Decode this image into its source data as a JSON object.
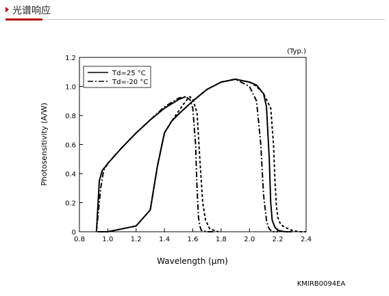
{
  "header": {
    "title": "光谱响应"
  },
  "colors": {
    "accent": "#b00000",
    "rule": "#c9c9c9",
    "ink": "#000000"
  },
  "chart_data": {
    "type": "line",
    "title": "",
    "note": "(Typ.)",
    "xlabel": "Wavelength (µm)",
    "ylabel": "Photosensitivity (A/W)",
    "xlim": [
      0.8,
      2.4
    ],
    "ylim": [
      0,
      1.2
    ],
    "x_ticks": [
      "0.8",
      "1.0",
      "1.2",
      "1.4",
      "1.6",
      "1.8",
      "2.0",
      "2.2",
      "2.4"
    ],
    "y_ticks": [
      "0",
      "0.2",
      "0.4",
      "0.6",
      "0.8",
      "1.0",
      "1.2"
    ],
    "grid": false,
    "legend": "top-left",
    "code": "KMIRB0094EA",
    "series": [
      {
        "name": "Td=25 °C",
        "line": "solid",
        "x": [
          0.92,
          0.94,
          0.96,
          1.0,
          1.1,
          1.2,
          1.3,
          1.4,
          1.5,
          1.55
        ],
        "y": [
          0.0,
          0.35,
          0.42,
          0.47,
          0.58,
          0.68,
          0.77,
          0.85,
          0.91,
          0.93
        ]
      },
      {
        "name": "Td=25 °C",
        "line": "solid",
        "x": [
          0.93,
          1.0,
          1.1,
          1.2,
          1.3,
          1.35,
          1.4,
          1.45,
          1.5,
          1.6,
          1.7,
          1.8,
          1.9,
          2.0,
          2.05,
          2.1,
          2.12,
          2.14,
          2.15,
          2.16,
          2.18,
          2.2,
          2.25,
          2.3
        ],
        "y": [
          0.0,
          0.0,
          0.02,
          0.04,
          0.15,
          0.45,
          0.68,
          0.76,
          0.81,
          0.9,
          0.98,
          1.03,
          1.05,
          1.03,
          1.01,
          0.95,
          0.86,
          0.5,
          0.2,
          0.08,
          0.03,
          0.01,
          0.0,
          0.0
        ]
      },
      {
        "name": "Td=-20 °C",
        "line": "dash-dot",
        "x": [
          0.92,
          0.95,
          0.97,
          1.0,
          1.1,
          1.2,
          1.3,
          1.4,
          1.5,
          1.55,
          1.58,
          1.6,
          1.62,
          1.63,
          1.64,
          1.65,
          1.66,
          1.7,
          1.75
        ],
        "y": [
          0.0,
          0.3,
          0.42,
          0.47,
          0.58,
          0.68,
          0.77,
          0.86,
          0.92,
          0.93,
          0.91,
          0.85,
          0.6,
          0.3,
          0.1,
          0.04,
          0.01,
          0.0,
          0.0
        ]
      },
      {
        "name": "Td=-20 °C",
        "line": "dash-dot",
        "x": [
          1.3,
          1.35,
          1.4,
          1.45,
          1.5,
          1.6,
          1.7,
          1.8,
          1.9,
          2.0,
          2.05,
          2.08,
          2.1,
          2.12,
          2.13,
          2.14,
          2.16,
          2.2
        ],
        "y": [
          0.15,
          0.45,
          0.68,
          0.76,
          0.81,
          0.9,
          0.98,
          1.03,
          1.05,
          1.0,
          0.9,
          0.6,
          0.25,
          0.08,
          0.04,
          0.02,
          0.0,
          0.0
        ]
      },
      {
        "name": "",
        "line": "dashed",
        "x": [
          0.93,
          0.94,
          0.96,
          1.0,
          1.1,
          1.2,
          1.3,
          1.35,
          1.4,
          1.45,
          1.5,
          1.55,
          1.58,
          1.6,
          1.63,
          1.65,
          1.67,
          1.69,
          1.72,
          1.78
        ],
        "y": [
          0.0,
          0.0,
          0.0,
          0.0,
          0.02,
          0.04,
          0.15,
          0.45,
          0.68,
          0.76,
          0.83,
          0.9,
          0.93,
          0.91,
          0.82,
          0.5,
          0.2,
          0.08,
          0.02,
          0.0
        ]
      },
      {
        "name": "",
        "line": "dashed",
        "x": [
          1.8,
          1.9,
          2.0,
          2.05,
          2.1,
          2.15,
          2.17,
          2.18,
          2.19,
          2.2,
          2.22,
          2.25,
          2.3,
          2.35,
          2.4
        ],
        "y": [
          1.03,
          1.05,
          1.03,
          1.0,
          0.95,
          0.85,
          0.6,
          0.35,
          0.18,
          0.1,
          0.05,
          0.03,
          0.01,
          0.0,
          0.0
        ]
      }
    ]
  }
}
